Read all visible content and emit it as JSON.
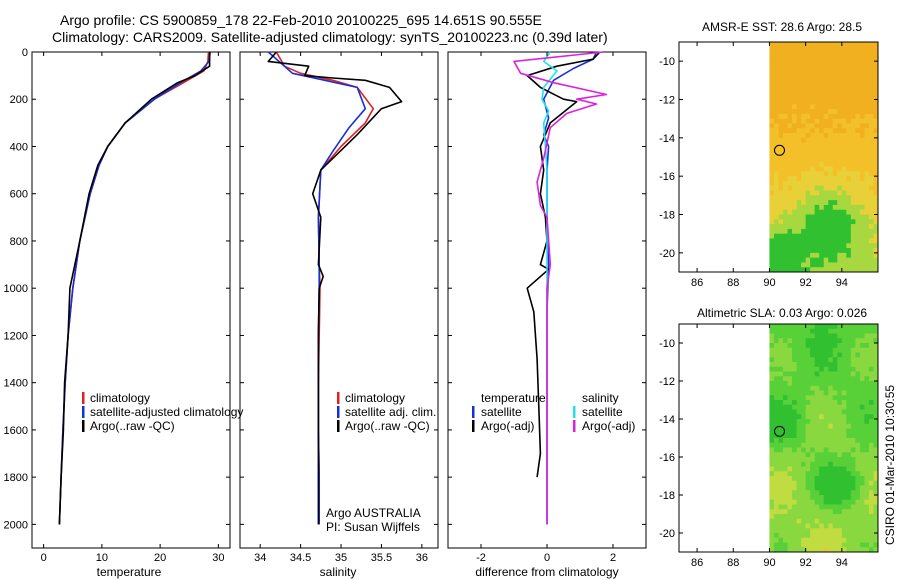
{
  "title": {
    "line1": "Argo profile: CS 5900859_178 22-Feb-2010 20100225_695 14.651S 90.555E",
    "line2": "Climatology: CARS2009. Satellite-adjusted climatology: synTS_20100223.nc (0.39d later)"
  },
  "side_text": "CSIRO 01-Mar-2010 10:30:55",
  "colors": {
    "climatology": "#dd2222",
    "satellite": "#1530d8",
    "argo": "#000000",
    "cyan": "#20e0e8",
    "magenta": "#e020e0"
  },
  "chart_data": [
    {
      "id": "temperature",
      "type": "line",
      "xlabel": "temperature",
      "xlim": [
        -2,
        32
      ],
      "ylim": [
        2100,
        0
      ],
      "xticks": [
        0,
        10,
        20,
        30
      ],
      "xtick_labels": [
        "0",
        "10",
        "20",
        "30"
      ],
      "yticks": [
        0,
        200,
        400,
        600,
        800,
        1000,
        1200,
        1400,
        1600,
        1800,
        2000
      ],
      "ytick_labels": [
        "0",
        "200",
        "400",
        "600",
        "800",
        "1000",
        "1200",
        "1400",
        "1600",
        "1800",
        "2000"
      ],
      "legend": [
        "climatology",
        "satellite-adjusted climatology",
        "Argo(..raw -QC)"
      ],
      "series": [
        {
          "name": "climatology",
          "color": "#dd2222",
          "x": [
            28.3,
            28.2,
            27.5,
            24,
            19,
            14,
            11,
            9.5,
            8,
            6.2,
            5,
            4.2,
            3.7,
            3.3,
            3.0,
            2.7
          ],
          "y": [
            0,
            40,
            80,
            130,
            200,
            300,
            400,
            480,
            600,
            800,
            1000,
            1200,
            1400,
            1600,
            1800,
            2000
          ]
        },
        {
          "name": "satellite",
          "color": "#1530d8",
          "x": [
            28.6,
            28.4,
            27,
            23.5,
            19,
            14,
            11,
            9.5,
            8,
            6.2,
            5,
            4.2,
            3.7,
            3.3,
            3.0,
            2.7
          ],
          "y": [
            0,
            40,
            80,
            130,
            200,
            300,
            400,
            480,
            600,
            800,
            1000,
            1200,
            1400,
            1600,
            1800,
            2000
          ]
        },
        {
          "name": "Argo",
          "color": "#000000",
          "x": [
            28.5,
            28.5,
            26,
            23,
            18.5,
            14,
            11,
            9.3,
            7.8,
            6.2,
            4.5,
            4.2,
            3.6,
            3.4,
            3.0,
            2.7
          ],
          "y": [
            0,
            60,
            100,
            130,
            200,
            300,
            400,
            480,
            600,
            800,
            1000,
            1200,
            1400,
            1600,
            1800,
            2000
          ]
        }
      ]
    },
    {
      "id": "salinity",
      "type": "line",
      "xlabel": "salinity",
      "xlim": [
        33.75,
        36.2
      ],
      "ylim": [
        2100,
        0
      ],
      "xticks": [
        34,
        34.5,
        35,
        35.5,
        36
      ],
      "xtick_labels": [
        "34",
        "34.5",
        "35",
        "35.5",
        "36"
      ],
      "legend": [
        "climatology",
        "satellite adj. clim.",
        "Argo(..raw -QC)"
      ],
      "annotation": [
        "Argo AUSTRALIA",
        "PI: Susan Wijffels"
      ],
      "series": [
        {
          "name": "climatology",
          "color": "#dd2222",
          "x": [
            34.2,
            34.3,
            34.5,
            34.9,
            35.2,
            35.4,
            35.3,
            35.0,
            34.75,
            34.72,
            34.73,
            34.74,
            34.73,
            34.72,
            34.72,
            34.73,
            34.73
          ],
          "y": [
            0,
            60,
            90,
            120,
            150,
            240,
            300,
            400,
            500,
            700,
            900,
            1000,
            1200,
            1400,
            1600,
            1800,
            2000
          ]
        },
        {
          "name": "satellite",
          "color": "#1530d8",
          "x": [
            34.1,
            34.3,
            34.4,
            34.8,
            35.2,
            35.3,
            35.1,
            34.9,
            34.75,
            34.72,
            34.73,
            34.73,
            34.72,
            34.72,
            34.72,
            34.73,
            34.73
          ],
          "y": [
            0,
            60,
            90,
            120,
            150,
            240,
            320,
            420,
            500,
            700,
            900,
            1000,
            1200,
            1400,
            1600,
            1800,
            2000
          ]
        },
        {
          "name": "Argo",
          "color": "#000000",
          "x": [
            34.2,
            34.1,
            34.6,
            34.55,
            34.9,
            35.3,
            35.6,
            35.75,
            35.5,
            35.2,
            34.75,
            34.65,
            34.75,
            34.72,
            34.78,
            34.73,
            34.72,
            34.72,
            34.72,
            34.72
          ],
          "y": [
            0,
            40,
            60,
            100,
            110,
            120,
            150,
            210,
            240,
            350,
            500,
            600,
            700,
            900,
            950,
            1000,
            1200,
            1400,
            1800,
            2000
          ]
        }
      ]
    },
    {
      "id": "difference",
      "type": "line",
      "xlabel": "difference from climatology",
      "xlim": [
        -3,
        3
      ],
      "ylim": [
        2100,
        0
      ],
      "xticks": [
        -2,
        0,
        2
      ],
      "xtick_labels": [
        "-2",
        "0",
        "2"
      ],
      "legend_left_title": "temperature",
      "legend_right_title": "salinity",
      "legend": [
        "satellite",
        "Argo(-adj)",
        "satellite",
        "Argo(-adj)"
      ],
      "series": [
        {
          "name": "temperature satellite",
          "color": "#1530d8",
          "x": [
            1.5,
            1.4,
            0.8,
            0.2,
            -0.1,
            0.05,
            -0.1,
            0.05,
            0,
            0,
            0.05,
            0,
            0,
            0,
            0,
            0
          ],
          "y": [
            0,
            30,
            70,
            120,
            200,
            280,
            350,
            400,
            500,
            700,
            900,
            1100,
            1400,
            1600,
            1800,
            2000
          ]
        },
        {
          "name": "temperature Argo",
          "color": "#000000",
          "x": [
            1.6,
            1.4,
            0.3,
            -0.6,
            -0.2,
            0.5,
            0.9,
            0.1,
            -0.2,
            -0.1,
            -0.2,
            -0.05,
            0,
            -0.1,
            -0.2,
            0.05,
            -0.6,
            -0.4,
            -0.3,
            -0.25,
            -0.2,
            -0.3
          ],
          "y": [
            0,
            30,
            60,
            100,
            150,
            200,
            210,
            300,
            400,
            500,
            600,
            700,
            800,
            850,
            900,
            920,
            1000,
            1100,
            1300,
            1500,
            1700,
            1800
          ]
        },
        {
          "name": "salinity satellite",
          "color": "#20e0e8",
          "x": [
            0.1,
            -0.1,
            0.3,
            -0.1,
            -0.15,
            0.05,
            -0.1,
            -0.05,
            0,
            0,
            0,
            0,
            0,
            0,
            0,
            0
          ],
          "y": [
            0,
            40,
            80,
            150,
            200,
            250,
            300,
            400,
            500,
            700,
            900,
            1100,
            1400,
            1600,
            1800,
            2000
          ]
        },
        {
          "name": "salinity Argo",
          "color": "#e020e0",
          "x": [
            1.7,
            -1.0,
            -0.8,
            0.2,
            1.8,
            0.9,
            1.5,
            0.6,
            0.1,
            -0.1,
            -0.3,
            -0.2,
            0,
            0.1,
            0,
            0,
            0,
            0,
            0
          ],
          "y": [
            0,
            40,
            90,
            130,
            180,
            200,
            220,
            260,
            320,
            450,
            550,
            650,
            700,
            900,
            1000,
            1200,
            1400,
            1700,
            2000
          ]
        }
      ]
    },
    {
      "id": "sst_map",
      "type": "heatmap",
      "title": "AMSR-E SST: 28.6  Argo: 28.5",
      "xlim": [
        85,
        96
      ],
      "ylim": [
        -21,
        -9
      ],
      "xticks": [
        86,
        88,
        90,
        92,
        94
      ],
      "xtick_labels": [
        "86",
        "88",
        "90",
        "92",
        "94"
      ],
      "yticks": [
        -10,
        -12,
        -14,
        -16,
        -18,
        -20
      ],
      "ytick_labels": [
        "-10",
        "-12",
        "-14",
        "-16",
        "-18",
        "-20"
      ],
      "data_lon_start": 90,
      "marker": {
        "lon": 90.555,
        "lat": -14.651
      },
      "colors": [
        "#f0b020",
        "#f4c02a",
        "#e8d038",
        "#a8d840",
        "#30c030"
      ]
    },
    {
      "id": "sla_map",
      "type": "heatmap",
      "title": "Altimetric SLA: 0.03  Argo: 0.026",
      "xlim": [
        85,
        96
      ],
      "ylim": [
        -21,
        -9
      ],
      "xticks": [
        86,
        88,
        90,
        92,
        94
      ],
      "xtick_labels": [
        "86",
        "88",
        "90",
        "92",
        "94"
      ],
      "yticks": [
        -10,
        -12,
        -14,
        -16,
        -18,
        -20
      ],
      "ytick_labels": [
        "-10",
        "-12",
        "-14",
        "-16",
        "-18",
        "-20"
      ],
      "data_lon_start": 90,
      "marker": {
        "lon": 90.555,
        "lat": -14.651
      },
      "colors": [
        "#30c030",
        "#58d038",
        "#8ad840",
        "#c0dc40",
        "#e0c838"
      ]
    }
  ]
}
